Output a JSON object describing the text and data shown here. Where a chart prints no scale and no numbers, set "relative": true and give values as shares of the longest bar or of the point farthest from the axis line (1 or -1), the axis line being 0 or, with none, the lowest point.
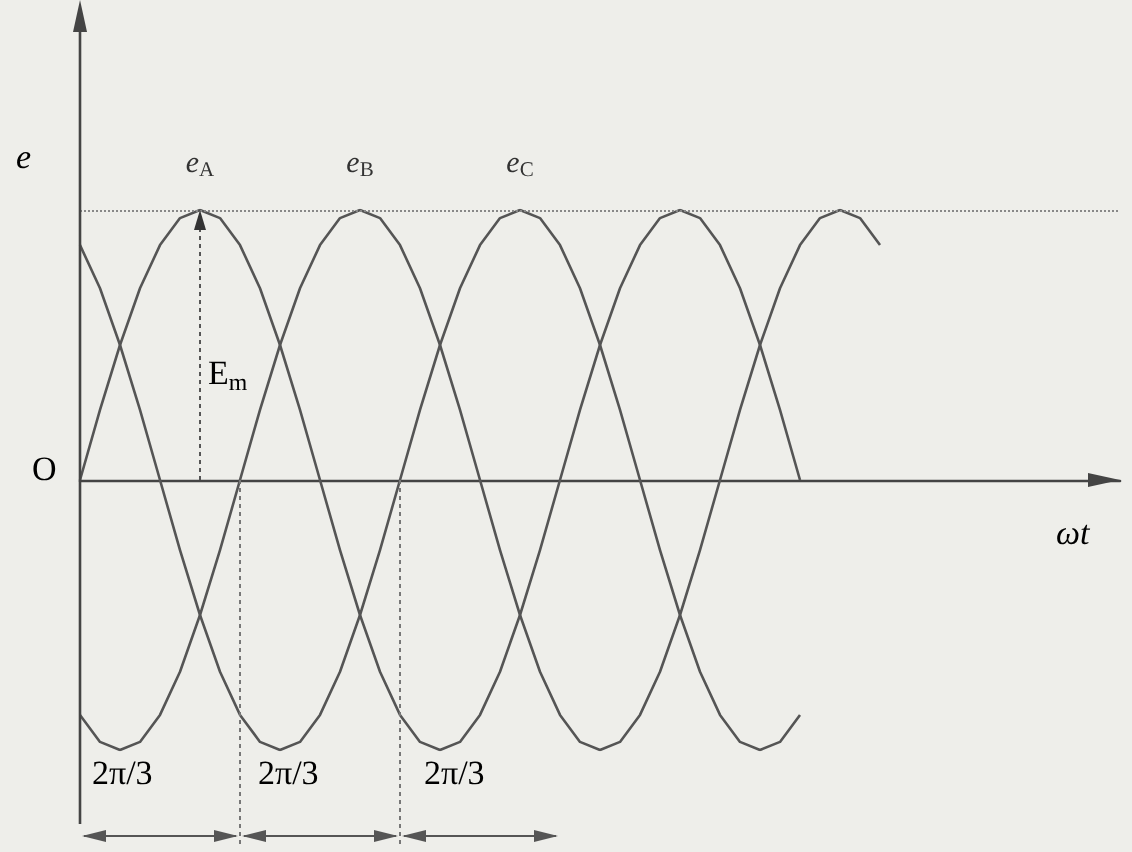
{
  "chart_data": {
    "type": "line",
    "relative": true,
    "ylabel": "e",
    "xlabel": "ωt",
    "categories": [
      null,
      null,
      null,
      null,
      null,
      null,
      null,
      null,
      null,
      null,
      null,
      null,
      null,
      null,
      null,
      null,
      null,
      null,
      null,
      null,
      null,
      null,
      null,
      null,
      null,
      null,
      null,
      null,
      null,
      null,
      null,
      null,
      null,
      null,
      null,
      null,
      null,
      null,
      null,
      null,
      null,
      null,
      null,
      null,
      null,
      null,
      null,
      null,
      null,
      null,
      null,
      null,
      null
    ],
    "series": [
      {
        "name": "e$_{A}$",
        "color": "#555555",
        "values": [
          0,
          0.26,
          0.5,
          0.71,
          0.87,
          0.97,
          1,
          0.97,
          0.87,
          0.71,
          0.5,
          0.26,
          0,
          -0.26,
          -0.5,
          -0.71,
          -0.87,
          -0.97,
          -1,
          -0.97,
          -0.87,
          -0.71,
          -0.5,
          -0.26,
          0,
          0.26,
          0.5,
          0.71,
          0.87,
          0.97,
          1,
          0.97,
          0.87,
          0.71,
          0.5,
          0.26,
          0,
          null,
          null,
          null,
          null,
          null,
          null,
          null,
          null,
          null,
          null,
          null,
          null,
          null,
          null,
          null,
          null
        ]
      },
      {
        "name": "e$_{B}$",
        "color": "#555555",
        "values": [
          -0.87,
          -0.97,
          -1,
          -0.97,
          -0.87,
          -0.71,
          -0.5,
          -0.26,
          0,
          0.26,
          0.5,
          0.71,
          0.87,
          0.97,
          1,
          0.97,
          0.87,
          0.71,
          0.5,
          0.26,
          0,
          -0.26,
          -0.5,
          -0.71,
          -0.87,
          -0.97,
          -1,
          -0.97,
          -0.87,
          -0.71,
          -0.5,
          -0.26,
          0,
          0.26,
          0.5,
          0.71,
          0.87,
          0.97,
          1,
          0.97,
          0.87,
          null,
          null,
          null,
          null,
          null,
          null,
          null,
          null,
          null,
          null,
          null,
          null
        ]
      },
      {
        "name": "e$_{C}$",
        "color": "#555555",
        "values": [
          0.87,
          0.71,
          0.5,
          0.26,
          0,
          -0.26,
          -0.5,
          -0.71,
          -0.87,
          -0.97,
          -1,
          -0.97,
          -0.87,
          -0.71,
          -0.5,
          -0.26,
          0,
          0.26,
          0.5,
          0.71,
          0.87,
          0.97,
          1,
          0.97,
          0.87,
          0.71,
          0.5,
          0.26,
          0,
          -0.26,
          -0.5,
          -0.71,
          -0.87,
          -0.97,
          -1,
          -0.97,
          -0.87,
          null,
          null,
          null,
          null,
          null,
          null,
          null,
          null,
          null,
          null,
          null,
          null,
          null,
          null,
          null,
          null
        ]
      }
    ],
    "ref_lines": [
      {
        "axis": "y",
        "value": 1,
        "line_style": "dotted",
        "color": "#888888"
      }
    ],
    "annotations": [
      "O",
      "E$_{m}$",
      "2π/3",
      "2π/3",
      "2π/3"
    ]
  }
}
